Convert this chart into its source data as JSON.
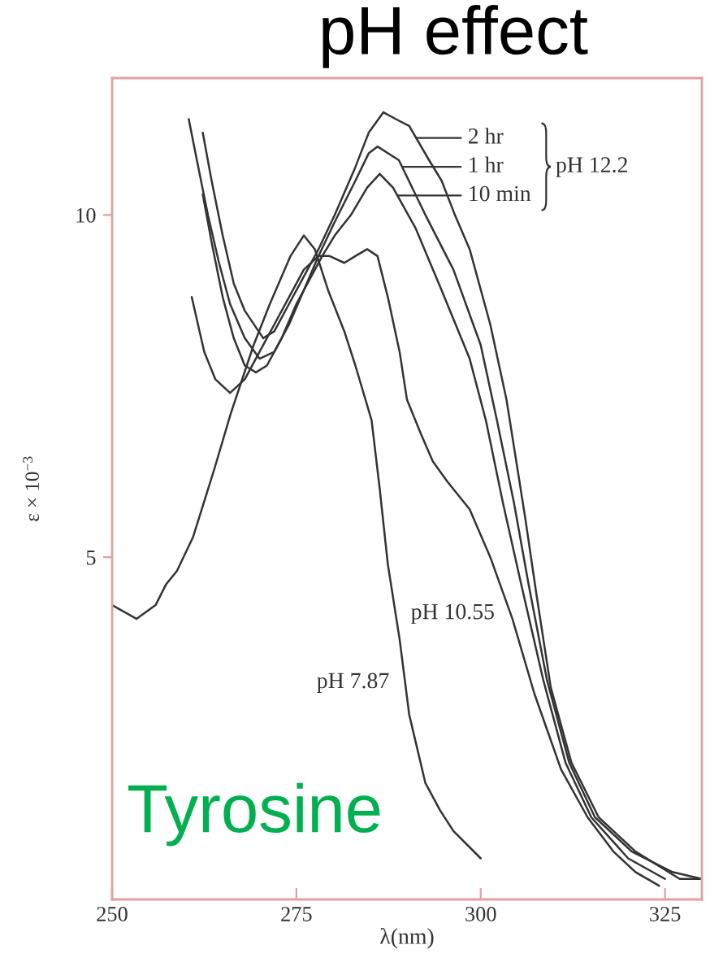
{
  "chart_data": {
    "type": "line",
    "title": "pH effect",
    "xlabel": "λ(nm)",
    "ylabel": "ε × 10$^{−3}$",
    "xlim": [
      250,
      330
    ],
    "ylim": [
      0,
      12
    ],
    "xticks": [
      250,
      275,
      300,
      325
    ],
    "yticks": [
      5,
      10
    ],
    "line_style": "solid",
    "legend": "top right",
    "annotations": [
      "pH 12.2",
      "Tyrosine"
    ],
    "series": [
      {
        "name": "pH 7.87",
        "color": "#333333",
        "x": [
          250,
          253.3,
          255.9,
          257.3,
          258.8,
          261,
          263.9,
          266.1,
          269.2,
          271.4,
          274.2,
          276,
          277.5,
          279.3,
          281.5,
          283,
          285.2,
          286.3,
          287.4,
          289,
          290.3,
          292.5,
          294.5,
          296.3,
          300
        ],
        "values": [
          4.3,
          4.1,
          4.3,
          4.6,
          4.8,
          5.3,
          6.3,
          7.1,
          8.1,
          8.7,
          9.4,
          9.7,
          9.5,
          8.9,
          8.3,
          7.8,
          7.0,
          6.0,
          4.9,
          3.8,
          2.7,
          1.7,
          1.3,
          1.0,
          0.6
        ]
      },
      {
        "name": "pH 10.55",
        "color": "#333333",
        "x": [
          260.8,
          262.5,
          264,
          266,
          268,
          270,
          272,
          274,
          276,
          278,
          279.5,
          281.5,
          283,
          284.6,
          286,
          287.4,
          289,
          290,
          291.9,
          293.5,
          295.5,
          298.5,
          301.3,
          304.3,
          307.3,
          310.9,
          314.5,
          318,
          321,
          324.2
        ],
        "values": [
          8.8,
          8.0,
          7.6,
          7.4,
          7.6,
          8.0,
          8.4,
          8.8,
          9.2,
          9.4,
          9.4,
          9.3,
          9.4,
          9.5,
          9.4,
          8.8,
          8.0,
          7.3,
          6.8,
          6.4,
          6.1,
          5.7,
          5.0,
          4.1,
          3.0,
          1.9,
          1.2,
          0.7,
          0.4,
          0.2
        ]
      },
      {
        "name": "10 min",
        "color": "#333333",
        "x": [
          262.3,
          263.5,
          265,
          266.5,
          268,
          269.5,
          271,
          273,
          275,
          277,
          278.5,
          280.2,
          282.4,
          284.6,
          286.3,
          288.1,
          291.2,
          294.7,
          298.5,
          300.7,
          303,
          305.5,
          308.5,
          311.5,
          315,
          320,
          325
        ],
        "values": [
          10.3,
          9.6,
          8.8,
          8.2,
          7.8,
          7.7,
          7.8,
          8.2,
          8.7,
          9.1,
          9.4,
          9.7,
          10.0,
          10.4,
          10.6,
          10.4,
          9.8,
          8.9,
          7.9,
          7.0,
          5.8,
          4.6,
          3.2,
          2.0,
          1.2,
          0.6,
          0.3
        ]
      },
      {
        "name": "1 hr",
        "color": "#333333",
        "x": [
          260.4,
          261.5,
          263,
          264.5,
          266,
          268,
          270,
          272,
          274,
          276,
          278,
          280.2,
          283,
          284.8,
          286,
          288.9,
          292.5,
          296.3,
          300,
          302.2,
          304.5,
          306.5,
          309,
          312,
          315.5,
          320.5,
          326,
          330
        ],
        "values": [
          11.4,
          10.8,
          10.0,
          9.3,
          8.7,
          8.2,
          7.9,
          8.0,
          8.4,
          8.9,
          9.4,
          9.9,
          10.5,
          10.9,
          11.0,
          10.8,
          10.0,
          9.2,
          8.1,
          7.0,
          5.8,
          4.6,
          3.2,
          2.0,
          1.2,
          0.7,
          0.4,
          0.3
        ]
      },
      {
        "name": "2 hr",
        "color": "#333333",
        "x": [
          262.3,
          263.5,
          265,
          266.5,
          268,
          270.5,
          272,
          274,
          276,
          278,
          280.2,
          283,
          284.8,
          286.8,
          288.5,
          290.3,
          293,
          294.7,
          296.5,
          298.5,
          301.3,
          303.5,
          306,
          307.5,
          309.5,
          312.3,
          316,
          321,
          327,
          330
        ],
        "values": [
          11.2,
          10.5,
          9.7,
          9.0,
          8.6,
          8.2,
          8.3,
          8.7,
          9.1,
          9.5,
          10.0,
          10.7,
          11.2,
          11.5,
          11.4,
          11.3,
          10.8,
          10.5,
          10.0,
          9.5,
          8.4,
          7.3,
          5.6,
          4.5,
          3.1,
          2.0,
          1.2,
          0.7,
          0.3,
          0.3
        ]
      }
    ]
  }
}
